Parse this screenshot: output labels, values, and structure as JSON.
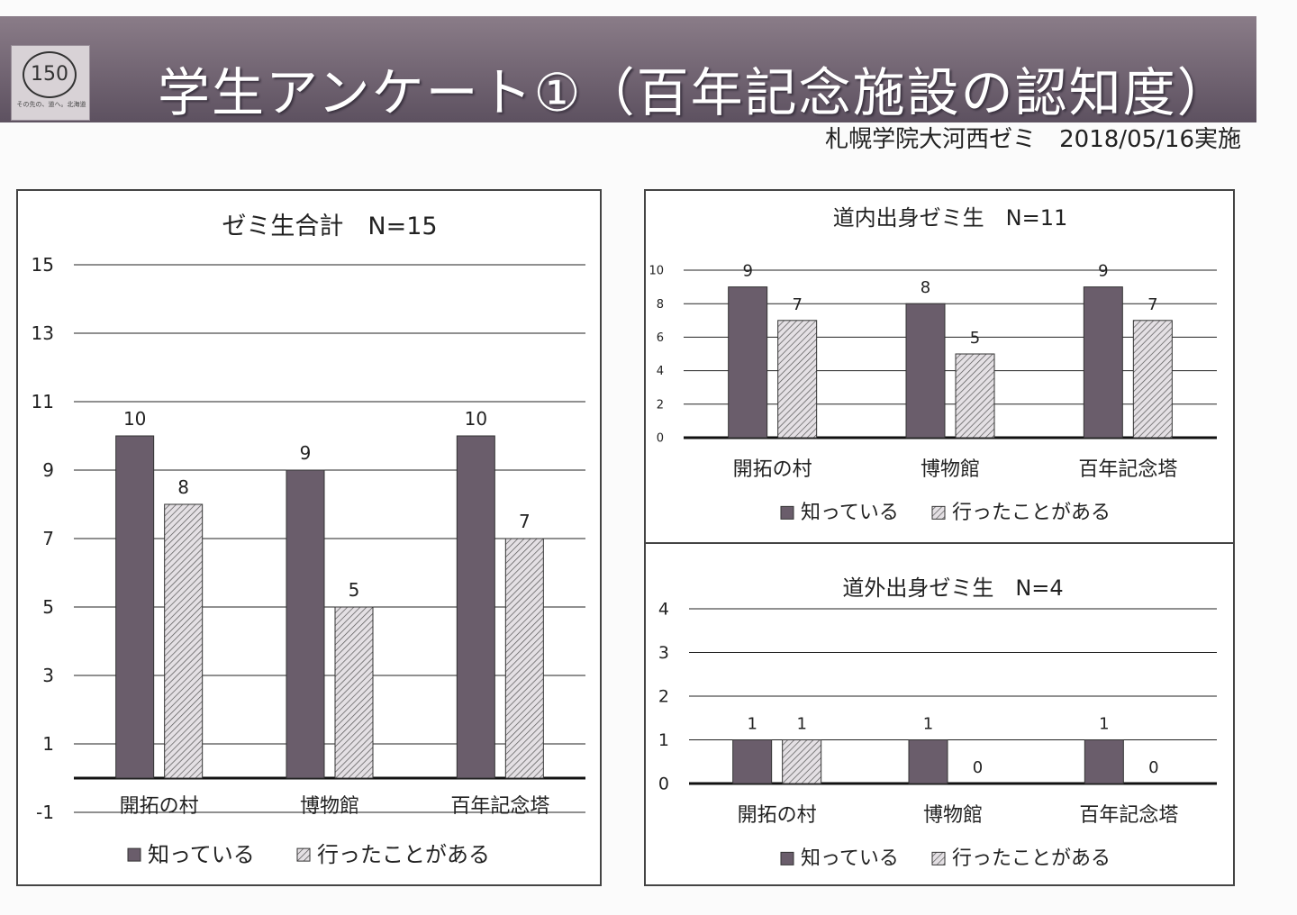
{
  "header": {
    "title": "学生アンケート①（百年記念施設の認知度）",
    "subtitle": "札幌学院大河西ゼミ　2018/05/16実施",
    "logo_text": "150",
    "logo_tagline": "その先の、道へ。北海道"
  },
  "colors": {
    "banner": "#6f6270",
    "known": "#6a5d6b",
    "visited": "#e4e0e4",
    "axis": "#111111",
    "grid": "#222222"
  },
  "chart_data": [
    {
      "type": "bar",
      "title": "ゼミ生合計　N=15",
      "categories": [
        "開拓の村",
        "博物館",
        "百年記念塔"
      ],
      "series": [
        {
          "name": "知っている",
          "values": [
            10,
            9,
            10
          ]
        },
        {
          "name": "行ったことがある",
          "values": [
            8,
            5,
            7
          ]
        }
      ],
      "ylim": [
        -1,
        15
      ],
      "yticks": [
        -1,
        1,
        3,
        5,
        7,
        9,
        11,
        13,
        15
      ],
      "grid": true,
      "legend": "bottom"
    },
    {
      "type": "bar",
      "title": "道内出身ゼミ生　N=11",
      "categories": [
        "開拓の村",
        "博物館",
        "百年記念塔"
      ],
      "series": [
        {
          "name": "知っている",
          "values": [
            9,
            8,
            9
          ]
        },
        {
          "name": "行ったことがある",
          "values": [
            7,
            5,
            7
          ]
        }
      ],
      "ylim": [
        0,
        10
      ],
      "yticks": [
        0,
        2,
        4,
        6,
        8,
        10
      ],
      "grid": true,
      "legend": "bottom"
    },
    {
      "type": "bar",
      "title": "道外出身ゼミ生　N=4",
      "categories": [
        "開拓の村",
        "博物館",
        "百年記念塔"
      ],
      "series": [
        {
          "name": "知っている",
          "values": [
            1,
            1,
            1
          ]
        },
        {
          "name": "行ったことがある",
          "values": [
            1,
            0,
            0
          ]
        }
      ],
      "ylim": [
        0,
        4
      ],
      "yticks": [
        0,
        1,
        2,
        3,
        4
      ],
      "grid": true,
      "legend": "bottom"
    }
  ]
}
